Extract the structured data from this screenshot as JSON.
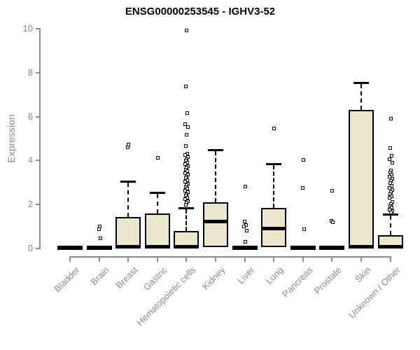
{
  "chart_data": {
    "type": "boxplot",
    "title": "ENSG00000253545 - IGHV3-52",
    "ylabel": "Expression",
    "xlabel": "",
    "ylim": [
      0,
      10
    ],
    "yticks": [
      0,
      2,
      4,
      6,
      8,
      10
    ],
    "grid": false,
    "legend": false,
    "colors": {
      "box_fill": "#ECE7CC",
      "box_border": "#000000",
      "median": "#000000",
      "axis": "#8C8C8C",
      "tick_label": "#8A8A8A",
      "title": "#000000",
      "background": "#FFFFFF"
    },
    "categories": [
      "Bladder",
      "Brain",
      "Breast",
      "Gastric",
      "Hematopoietic cells",
      "Kidney",
      "Liver",
      "Lung",
      "Pancreas",
      "Prostate",
      "Skin",
      "Unknown / Other"
    ],
    "boxes": [
      {
        "label": "Bladder",
        "flat": true,
        "q1": 0,
        "median": 0.05,
        "q3": 0.1,
        "whisker_low": 0,
        "whisker_high": 0.1,
        "outliers": []
      },
      {
        "label": "Brain",
        "flat": true,
        "q1": 0,
        "median": 0.05,
        "q3": 0.1,
        "whisker_low": 0,
        "whisker_high": 0.1,
        "outliers": [
          1.0,
          0.85,
          0.45
        ]
      },
      {
        "label": "Breast",
        "flat": false,
        "q1": 0,
        "median": 0.07,
        "q3": 1.4,
        "whisker_low": 0,
        "whisker_high": 3.05,
        "outliers": [
          4.7,
          4.6
        ]
      },
      {
        "label": "Gastric",
        "flat": false,
        "q1": 0,
        "median": 0.07,
        "q3": 1.55,
        "whisker_low": 0,
        "whisker_high": 2.55,
        "outliers": [
          4.1
        ]
      },
      {
        "label": "Hematopoietic cells",
        "flat": false,
        "q1": 0,
        "median": 0.07,
        "q3": 0.78,
        "whisker_low": 0,
        "whisker_high": 1.85,
        "outliers": [
          9.9,
          7.35,
          6.15,
          5.65,
          5.52,
          5.15,
          4.65,
          4.3,
          4.22,
          4.14,
          4.06,
          3.98,
          3.9,
          3.82,
          3.74,
          3.66,
          3.58,
          3.5,
          3.42,
          3.34,
          3.26,
          3.18,
          3.1,
          3.02,
          2.94,
          2.86,
          2.78,
          2.7,
          2.62,
          2.54,
          2.46,
          2.38,
          2.3,
          2.22,
          2.14,
          2.06,
          1.98
        ]
      },
      {
        "label": "Kidney",
        "flat": false,
        "q1": 0.02,
        "median": 1.2,
        "q3": 2.07,
        "whisker_low": 0.02,
        "whisker_high": 4.5,
        "outliers": []
      },
      {
        "label": "Liver",
        "flat": true,
        "q1": 0,
        "median": 0.05,
        "q3": 0.1,
        "whisker_low": 0,
        "whisker_high": 0.1,
        "outliers": [
          2.8,
          1.2,
          1.05,
          0.98,
          0.8,
          0.3
        ]
      },
      {
        "label": "Lung",
        "flat": false,
        "q1": 0.02,
        "median": 0.9,
        "q3": 1.82,
        "whisker_low": 0.02,
        "whisker_high": 3.85,
        "outliers": [
          5.45
        ]
      },
      {
        "label": "Pancreas",
        "flat": true,
        "q1": 0,
        "median": 0.05,
        "q3": 0.1,
        "whisker_low": 0,
        "whisker_high": 0.1,
        "outliers": [
          4.0,
          2.75,
          0.85
        ]
      },
      {
        "label": "Prostate",
        "flat": true,
        "q1": 0,
        "median": 0.05,
        "q3": 0.1,
        "whisker_low": 0,
        "whisker_high": 0.1,
        "outliers": [
          2.6,
          1.25,
          1.18
        ]
      },
      {
        "label": "Skin",
        "flat": false,
        "q1": 0,
        "median": 0.06,
        "q3": 6.27,
        "whisker_low": 0,
        "whisker_high": 7.55,
        "outliers": []
      },
      {
        "label": "Unknown / Other",
        "flat": false,
        "q1": 0,
        "median": 0.06,
        "q3": 0.58,
        "whisker_low": 0,
        "whisker_high": 1.55,
        "outliers": [
          5.9,
          4.55,
          4.2,
          4.05,
          3.9,
          3.55,
          3.45,
          3.35,
          3.25,
          3.15,
          3.05,
          2.95,
          2.85,
          2.75,
          2.65,
          2.55,
          2.45,
          2.35,
          2.28,
          2.1,
          2.0,
          1.92,
          1.84,
          1.76,
          1.68,
          1.62
        ]
      }
    ]
  }
}
